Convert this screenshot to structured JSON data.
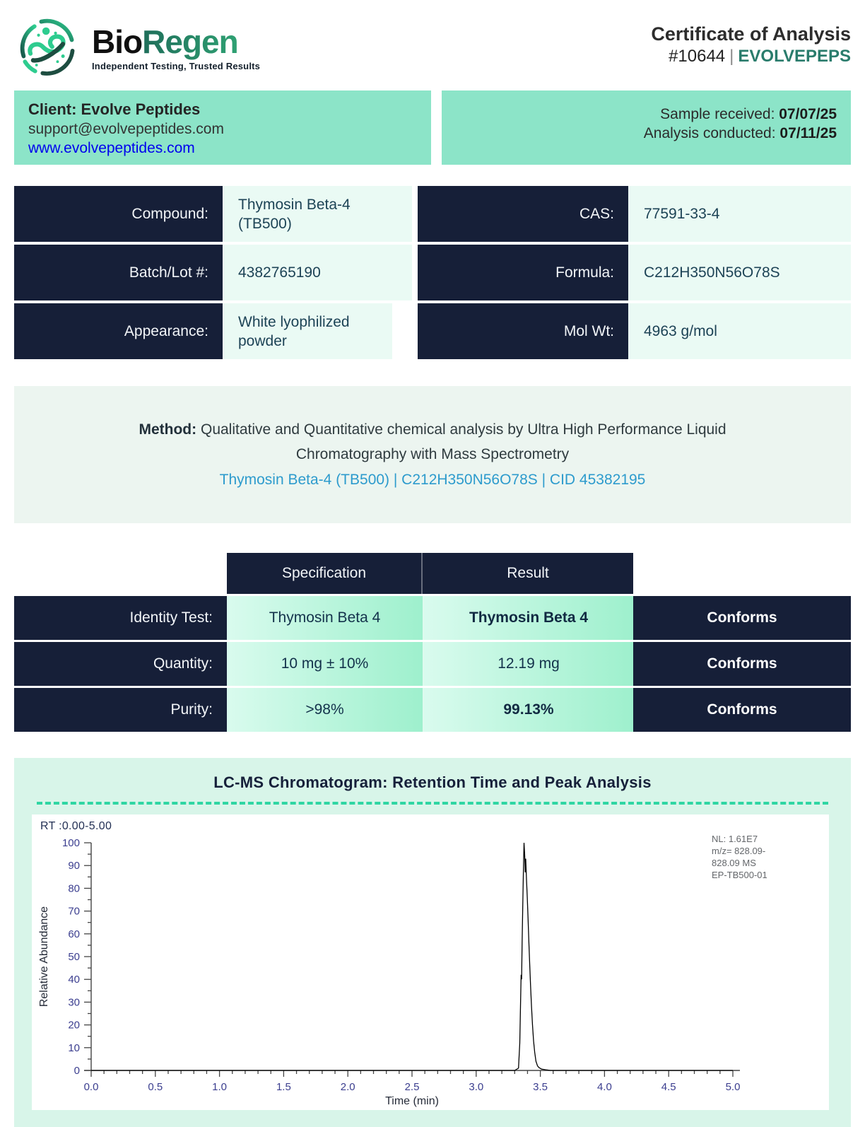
{
  "header": {
    "brand_bio": "Bio",
    "brand_regen": "Regen",
    "tagline": "Independent Testing, Trusted Results",
    "doc_title": "Certificate of Analysis",
    "cert_number": "#10644",
    "client_code": "EVOLVEPEPS"
  },
  "client_bar": {
    "client_label": "Client: Evolve Peptides",
    "email": "support@evolvepeptides.com",
    "website": "www.evolvepeptides.com",
    "received_label": "Sample received: ",
    "received_date": "07/07/25",
    "conducted_label": "Analysis conducted: ",
    "conducted_date": "07/11/25"
  },
  "compound_table": {
    "rows": [
      {
        "left_label": "Compound:",
        "left_value": "Thymosin Beta-4 (TB500)",
        "right_label": "CAS:",
        "right_value": "77591-33-4"
      },
      {
        "left_label": "Batch/Lot #:",
        "left_value": "4382765190",
        "right_label": "Formula:",
        "right_value": "C212H350N56O78S"
      },
      {
        "left_label": "Appearance:",
        "left_value": "White lyophilized powder",
        "right_label": "Mol Wt:",
        "right_value": "4963 g/mol"
      }
    ]
  },
  "method": {
    "label": "Method:",
    "line1": "Qualitative and Quantitative chemical analysis by Ultra High Performance Liquid",
    "line2": "Chromatography with Mass Spectrometry",
    "link": "Thymosin Beta-4 (TB500) | C212H350N56O78S | CID 45382195"
  },
  "results_table": {
    "spec_header": "Specification",
    "result_header": "Result",
    "rows": [
      {
        "label": "Identity Test:",
        "spec": "Thymosin Beta 4",
        "result": "Thymosin Beta 4",
        "status": "Conforms"
      },
      {
        "label": "Quantity:",
        "spec": "10 mg ± 10%",
        "result": "12.19 mg",
        "status": "Conforms"
      },
      {
        "label": "Purity:",
        "spec": ">98%",
        "result": "99.13%",
        "status": "Conforms"
      }
    ]
  },
  "chromatogram": {
    "section_title": "LC-MS Chromatogram: Retention Time and Peak Analysis",
    "rt_label": "RT :0.00-5.00",
    "annotation_lines": [
      "NL: 1.61E7",
      "m/z= 828.09-",
      "828.09 MS",
      "EP-TB500-01"
    ]
  },
  "chart_data": {
    "type": "line",
    "title": "LC-MS chromatogram, single peak at ~3.4 min",
    "xlabel": "Time (min)",
    "ylabel": "Relative Abundance",
    "xlim": [
      0,
      5
    ],
    "ylim": [
      0,
      100
    ],
    "x_major_tick": 0.5,
    "x_minor_tick": 0.1,
    "y_major_tick": 10,
    "y_minor_tick": 5,
    "grid": false,
    "legend_position": "none",
    "peak_retention_min": 3.4,
    "series": [
      {
        "name": "EP-TB500-01",
        "points": [
          [
            0,
            0
          ],
          [
            3.3,
            0
          ],
          [
            3.33,
            1
          ],
          [
            3.34,
            12
          ],
          [
            3.345,
            28
          ],
          [
            3.35,
            42
          ],
          [
            3.354,
            40
          ],
          [
            3.358,
            56
          ],
          [
            3.363,
            72
          ],
          [
            3.368,
            87
          ],
          [
            3.373,
            100
          ],
          [
            3.378,
            95
          ],
          [
            3.382,
            87
          ],
          [
            3.386,
            93
          ],
          [
            3.392,
            84
          ],
          [
            3.398,
            76
          ],
          [
            3.404,
            67
          ],
          [
            3.41,
            57
          ],
          [
            3.417,
            47
          ],
          [
            3.424,
            37
          ],
          [
            3.431,
            28
          ],
          [
            3.439,
            20
          ],
          [
            3.447,
            13
          ],
          [
            3.456,
            8
          ],
          [
            3.466,
            4
          ],
          [
            3.478,
            2
          ],
          [
            3.49,
            1.2
          ],
          [
            3.51,
            0.6
          ],
          [
            3.54,
            0.3
          ],
          [
            3.58,
            0
          ],
          [
            5,
            0
          ]
        ]
      }
    ]
  },
  "colors": {
    "navy": "#161f38",
    "brand_teal": "#2a7c6c",
    "client_bar_mint": "#8ce4c8",
    "value_cell_mint": "#eafaf4",
    "result_gradient_left": "#d9fbee",
    "result_gradient_right": "#9ef0cd",
    "section_mint": "#d8f5e9",
    "dashed_line": "#2fd6a3",
    "link_blue": "#0000ee",
    "method_link_blue": "#2d9bcd",
    "axis_label_blue": "#3b3e8f",
    "trace_black": "#000000"
  }
}
